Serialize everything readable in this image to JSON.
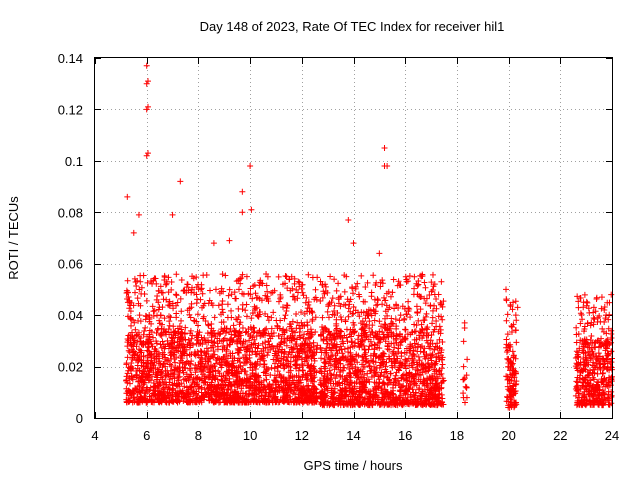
{
  "chart_data": {
    "type": "scatter",
    "title": "Day 148 of 2023, Rate Of TEC Index for receiver hil1",
    "xlabel": "GPS time / hours",
    "ylabel": "ROTI / TECUs",
    "xlim": [
      4,
      24
    ],
    "ylim": [
      0,
      0.14
    ],
    "xticks": [
      4,
      6,
      8,
      10,
      12,
      14,
      16,
      18,
      20,
      22,
      24
    ],
    "xtick_labels": [
      "4",
      "6",
      "8",
      "10",
      "12",
      "14",
      "16",
      "18",
      "20",
      "22",
      "24"
    ],
    "yticks": [
      0,
      0.02,
      0.04,
      0.06,
      0.08,
      0.1,
      0.12,
      0.14
    ],
    "ytick_labels": [
      "0",
      "0.02",
      "0.04",
      "0.06",
      "0.08",
      "0.1",
      "0.12",
      "0.14"
    ],
    "grid": true,
    "marker": "+",
    "color": "#ff0000",
    "coverage_segments": [
      {
        "x_start": 5.2,
        "x_end": 12.6,
        "typical_min": 0.006,
        "typical_max": 0.035,
        "note": "dense main block"
      },
      {
        "x_start": 12.7,
        "x_end": 17.5,
        "typical_min": 0.005,
        "typical_max": 0.035,
        "note": "dense second block"
      },
      {
        "x_start": 18.2,
        "x_end": 18.4,
        "typical_min": 0.006,
        "typical_max": 0.02,
        "note": "sparse"
      },
      {
        "x_start": 19.9,
        "x_end": 20.3,
        "typical_min": 0.004,
        "typical_max": 0.03,
        "note": "narrow block"
      },
      {
        "x_start": 22.6,
        "x_end": 24.0,
        "typical_min": 0.005,
        "typical_max": 0.03,
        "note": "dense final block"
      }
    ],
    "notable_points": [
      {
        "x": 6.0,
        "y": 0.137
      },
      {
        "x": 6.05,
        "y": 0.131
      },
      {
        "x": 6.0,
        "y": 0.13
      },
      {
        "x": 6.05,
        "y": 0.121
      },
      {
        "x": 6.0,
        "y": 0.12
      },
      {
        "x": 6.05,
        "y": 0.103
      },
      {
        "x": 6.0,
        "y": 0.102
      },
      {
        "x": 7.3,
        "y": 0.092
      },
      {
        "x": 10.0,
        "y": 0.098
      },
      {
        "x": 9.7,
        "y": 0.088
      },
      {
        "x": 5.25,
        "y": 0.086
      },
      {
        "x": 15.2,
        "y": 0.105
      },
      {
        "x": 15.2,
        "y": 0.098
      },
      {
        "x": 15.3,
        "y": 0.098
      },
      {
        "x": 13.8,
        "y": 0.077
      },
      {
        "x": 9.7,
        "y": 0.08
      },
      {
        "x": 10.05,
        "y": 0.081
      },
      {
        "x": 19.9,
        "y": 0.05
      },
      {
        "x": 17.4,
        "y": 0.053
      },
      {
        "x": 18.3,
        "y": 0.037
      },
      {
        "x": 18.3,
        "y": 0.035
      },
      {
        "x": 20.35,
        "y": 0.043
      },
      {
        "x": 22.9,
        "y": 0.045
      },
      {
        "x": 23.3,
        "y": 0.043
      },
      {
        "x": 23.7,
        "y": 0.042
      },
      {
        "x": 5.5,
        "y": 0.072
      },
      {
        "x": 5.7,
        "y": 0.079
      },
      {
        "x": 7.0,
        "y": 0.079
      },
      {
        "x": 8.6,
        "y": 0.068
      },
      {
        "x": 9.2,
        "y": 0.069
      },
      {
        "x": 14.0,
        "y": 0.068
      },
      {
        "x": 15.0,
        "y": 0.064
      },
      {
        "x": 12.9,
        "y": 0.052
      },
      {
        "x": 16.7,
        "y": 0.038
      }
    ]
  }
}
